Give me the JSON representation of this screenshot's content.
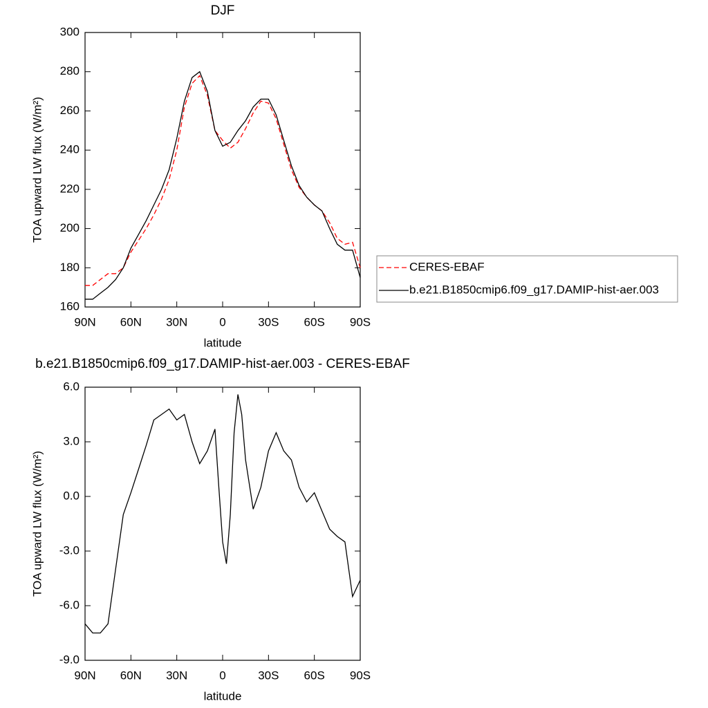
{
  "chart_data": [
    {
      "type": "line",
      "title": "DJF",
      "x_label": "latitude",
      "y_label": "TOA upward LW flux (W/m²)",
      "x": [
        90,
        85,
        80,
        75,
        70,
        65,
        60,
        55,
        50,
        45,
        40,
        35,
        30,
        25,
        20,
        15,
        10,
        5,
        0,
        -5,
        -10,
        -15,
        -20,
        -25,
        -30,
        -35,
        -40,
        -45,
        -50,
        -55,
        -60,
        -65,
        -70,
        -75,
        -80,
        -85,
        -90
      ],
      "series": [
        {
          "name": "CERES-EBAF",
          "color": "#ff0000",
          "style": "dashed",
          "values": [
            171,
            171,
            174,
            177,
            177,
            180,
            188,
            194,
            200,
            207,
            215,
            225,
            240,
            262,
            274,
            278,
            268,
            250,
            245,
            241,
            244,
            251,
            259,
            265,
            264,
            256,
            243,
            230,
            221,
            216,
            212,
            209,
            203,
            195,
            192,
            193,
            180
          ]
        },
        {
          "name": "b.e21.B1850cmip6.f09_g17.DAMIP-hist-aer.003",
          "color": "#000000",
          "style": "solid",
          "values": [
            164,
            164,
            167,
            170,
            174,
            180,
            190,
            197,
            204,
            212,
            220,
            230,
            246,
            265,
            277,
            280,
            270,
            250,
            242,
            244,
            250,
            255,
            262,
            266,
            266,
            258,
            245,
            232,
            222,
            216,
            212,
            209,
            200,
            192,
            189,
            189,
            175
          ]
        }
      ],
      "xlim": [
        90,
        -90
      ],
      "xticks": [
        {
          "value": 90,
          "label": "90N"
        },
        {
          "value": 60,
          "label": "60N"
        },
        {
          "value": 30,
          "label": "30N"
        },
        0,
        {
          "value": -30,
          "label": "30S"
        },
        {
          "value": -60,
          "label": "60S"
        },
        {
          "value": -90,
          "label": "90S"
        }
      ],
      "ylim": [
        160,
        300
      ],
      "yticks": [
        160,
        180,
        200,
        220,
        240,
        260,
        280,
        300
      ],
      "legend": "right"
    },
    {
      "type": "line",
      "title": "b.e21.B1850cmip6.f09_g17.DAMIP-hist-aer.003 - CERES-EBAF",
      "x_label": "latitude",
      "y_label": "TOA upward LW flux (W/m²)",
      "x": [
        90,
        85,
        80,
        75,
        70,
        65,
        60,
        55,
        50,
        45,
        40,
        35,
        30,
        25,
        20,
        15,
        10,
        5,
        2.5,
        0,
        -2.5,
        -5,
        -7.5,
        -10,
        -12.5,
        -15,
        -20,
        -25,
        -30,
        -35,
        -40,
        -45,
        -50,
        -55,
        -60,
        -65,
        -70,
        -75,
        -80,
        -85,
        -90
      ],
      "values": [
        -7.0,
        -7.5,
        -7.5,
        -7.0,
        -4.0,
        -1.0,
        0.2,
        1.5,
        2.8,
        4.2,
        4.5,
        4.8,
        4.2,
        4.5,
        3.0,
        1.8,
        2.5,
        3.7,
        0.5,
        -2.5,
        -3.7,
        -1.0,
        3.5,
        5.6,
        4.5,
        2.0,
        -0.7,
        0.5,
        2.5,
        3.5,
        2.5,
        2.0,
        0.5,
        -0.3,
        0.2,
        -0.8,
        -1.8,
        -2.2,
        -2.5,
        -5.5,
        -4.6
      ],
      "color": "#000000",
      "xlim": [
        90,
        -90
      ],
      "xticks": [
        {
          "value": 90,
          "label": "90N"
        },
        {
          "value": 60,
          "label": "60N"
        },
        {
          "value": 30,
          "label": "30N"
        },
        0,
        {
          "value": -30,
          "label": "30S"
        },
        {
          "value": -60,
          "label": "60S"
        },
        {
          "value": -90,
          "label": "90S"
        }
      ],
      "ylim": [
        -9,
        6
      ],
      "yticks": [
        {
          "value": -9,
          "label": "-9.0"
        },
        {
          "value": -6,
          "label": "-6.0"
        },
        {
          "value": -3,
          "label": "-3.0"
        },
        {
          "value": 0,
          "label": "0.0"
        },
        {
          "value": 3,
          "label": "3.0"
        },
        {
          "value": 6,
          "label": "6.0"
        }
      ]
    }
  ]
}
